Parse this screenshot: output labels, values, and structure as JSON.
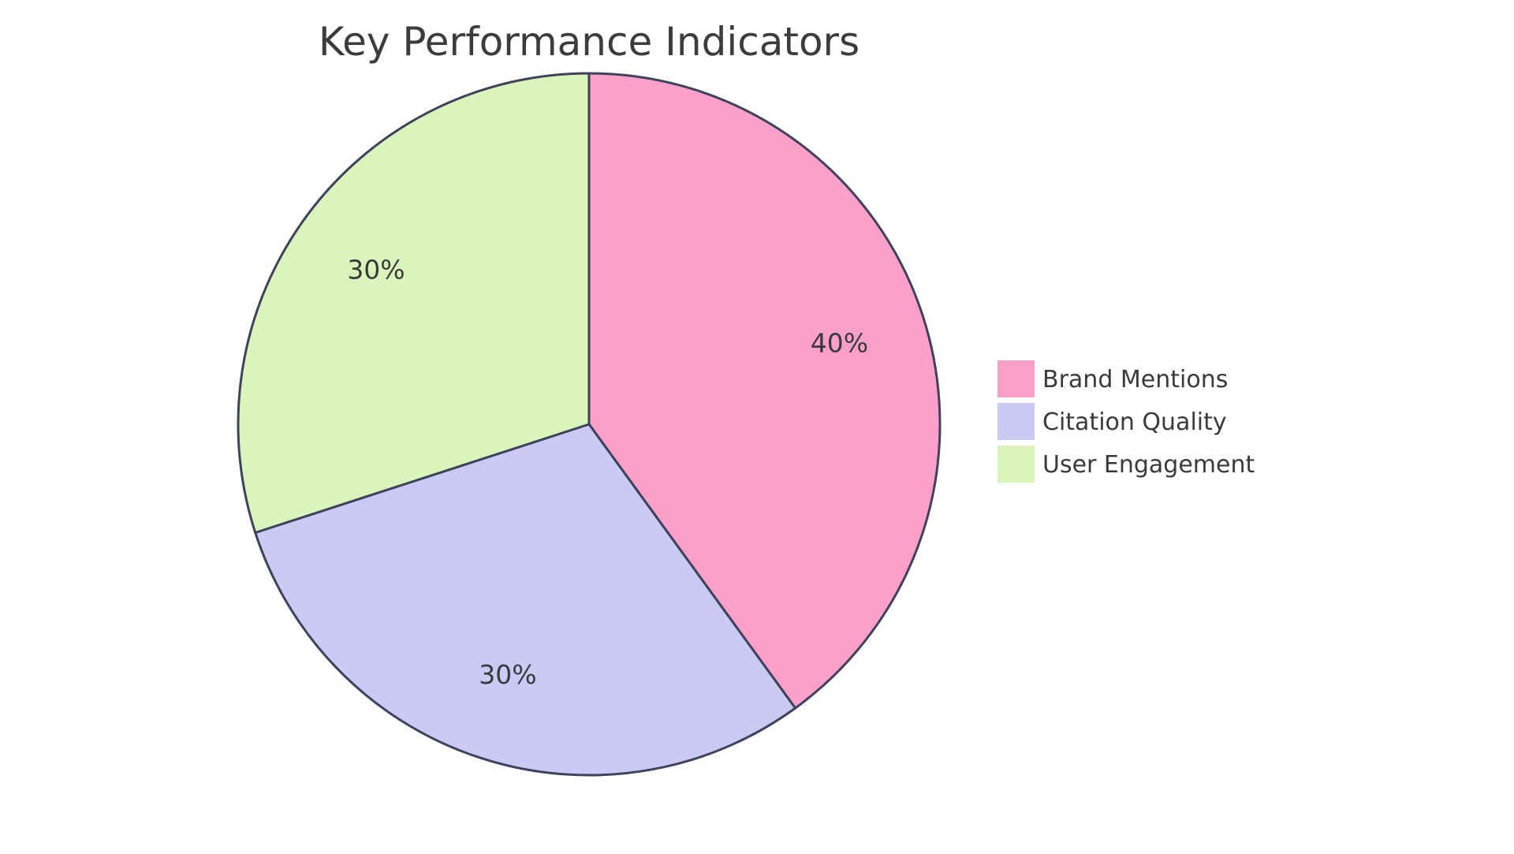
{
  "page": {
    "background_color": "#ffffff"
  },
  "chart_data": {
    "type": "pie",
    "title": "Key Performance Indicators",
    "title_color": "#3c3c3c",
    "label_color": "#3a3a3a",
    "legend_text_color": "#3a3a3a",
    "stroke_color": "#3e425a",
    "legend_position": "right",
    "start_angle": "12 o'clock, clockwise",
    "slices": [
      {
        "label": "Brand Mentions",
        "value": 40,
        "pct_label": "40%",
        "color": "#fca0cb"
      },
      {
        "label": "Citation Quality",
        "value": 30,
        "pct_label": "30%",
        "color": "#cacaf5"
      },
      {
        "label": "User Engagement",
        "value": 30,
        "pct_label": "30%",
        "color": "#d9f5bc"
      }
    ]
  }
}
